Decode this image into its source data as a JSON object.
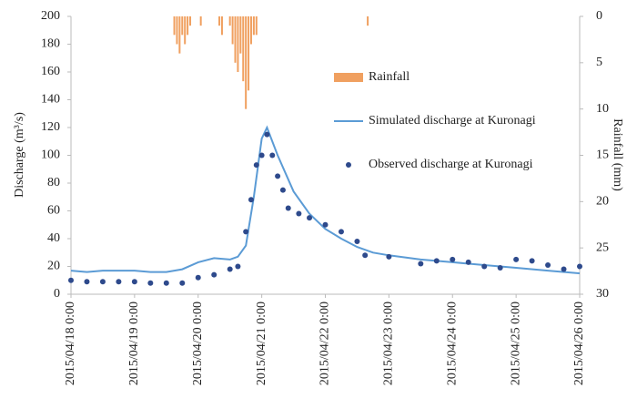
{
  "chart_data": {
    "type": "line",
    "ylabel": "Discharge (m³/s)",
    "y2label": "Rainfall (mm)",
    "xlim": [
      "2015/04/18 0:00",
      "2015/04/26 0:00"
    ],
    "xticks": [
      "2015/04/18 0:00",
      "2015/04/19 0:00",
      "2015/04/20 0:00",
      "2015/04/21 0:00",
      "2015/04/22 0:00",
      "2015/04/23 0:00",
      "2015/04/24 0:00",
      "2015/04/25 0:00",
      "2015/04/26 0:00"
    ],
    "ylim": [
      0,
      200
    ],
    "yticks": [
      0,
      20,
      40,
      60,
      80,
      100,
      120,
      140,
      160,
      180,
      200
    ],
    "y2lim": [
      30,
      0
    ],
    "y2ticks": [
      0,
      5,
      10,
      15,
      20,
      25,
      30
    ],
    "series": [
      {
        "name": "Rainfall",
        "type": "bar",
        "axis": "y2",
        "color": "#f0a060",
        "x": [
          "2015/04/19 15:00",
          "2015/04/19 16:00",
          "2015/04/19 17:00",
          "2015/04/19 18:00",
          "2015/04/19 19:00",
          "2015/04/19 20:00",
          "2015/04/19 21:00",
          "2015/04/20 1:00",
          "2015/04/20 8:00",
          "2015/04/20 9:00",
          "2015/04/20 12:00",
          "2015/04/20 13:00",
          "2015/04/20 14:00",
          "2015/04/20 15:00",
          "2015/04/20 16:00",
          "2015/04/20 17:00",
          "2015/04/20 18:00",
          "2015/04/20 19:00",
          "2015/04/20 20:00",
          "2015/04/20 21:00",
          "2015/04/20 22:00",
          "2015/04/22 16:00"
        ],
        "values": [
          2,
          3,
          4,
          2,
          3,
          2,
          1,
          1,
          1,
          2,
          1,
          3,
          5,
          6,
          4,
          7,
          10,
          8,
          3,
          2,
          2,
          1
        ]
      },
      {
        "name": "Simulated discharge at Kuronagi",
        "type": "line",
        "color": "#5b9bd5",
        "x": [
          "2015/04/18 0:00",
          "2015/04/18 6:00",
          "2015/04/18 12:00",
          "2015/04/18 18:00",
          "2015/04/19 0:00",
          "2015/04/19 6:00",
          "2015/04/19 12:00",
          "2015/04/19 18:00",
          "2015/04/20 0:00",
          "2015/04/20 6:00",
          "2015/04/20 12:00",
          "2015/04/20 15:00",
          "2015/04/20 18:00",
          "2015/04/20 21:00",
          "2015/04/21 0:00",
          "2015/04/21 2:00",
          "2015/04/21 6:00",
          "2015/04/21 12:00",
          "2015/04/21 18:00",
          "2015/04/22 0:00",
          "2015/04/22 6:00",
          "2015/04/22 12:00",
          "2015/04/22 18:00",
          "2015/04/23 0:00",
          "2015/04/23 12:00",
          "2015/04/24 0:00",
          "2015/04/24 12:00",
          "2015/04/25 0:00",
          "2015/04/25 12:00",
          "2015/04/26 0:00"
        ],
        "values": [
          17,
          16,
          17,
          17,
          17,
          16,
          16,
          18,
          23,
          26,
          25,
          27,
          35,
          70,
          112,
          120,
          100,
          74,
          58,
          47,
          40,
          34,
          30,
          28,
          25,
          23,
          21,
          19,
          17,
          15
        ]
      },
      {
        "name": "Observed discharge at Kuronagi",
        "type": "scatter",
        "color": "#2e4a8c",
        "x": [
          "2015/04/18 0:00",
          "2015/04/18 6:00",
          "2015/04/18 12:00",
          "2015/04/18 18:00",
          "2015/04/19 0:00",
          "2015/04/19 6:00",
          "2015/04/19 12:00",
          "2015/04/19 18:00",
          "2015/04/20 0:00",
          "2015/04/20 6:00",
          "2015/04/20 12:00",
          "2015/04/20 15:00",
          "2015/04/20 18:00",
          "2015/04/20 20:00",
          "2015/04/20 22:00",
          "2015/04/21 0:00",
          "2015/04/21 2:00",
          "2015/04/21 4:00",
          "2015/04/21 6:00",
          "2015/04/21 8:00",
          "2015/04/21 10:00",
          "2015/04/21 14:00",
          "2015/04/21 18:00",
          "2015/04/22 0:00",
          "2015/04/22 6:00",
          "2015/04/22 12:00",
          "2015/04/22 15:00",
          "2015/04/23 0:00",
          "2015/04/23 12:00",
          "2015/04/23 18:00",
          "2015/04/24 0:00",
          "2015/04/24 6:00",
          "2015/04/24 12:00",
          "2015/04/24 18:00",
          "2015/04/25 0:00",
          "2015/04/25 6:00",
          "2015/04/25 12:00",
          "2015/04/25 18:00",
          "2015/04/26 0:00"
        ],
        "values": [
          10,
          9,
          9,
          9,
          9,
          8,
          8,
          8,
          12,
          14,
          18,
          20,
          45,
          68,
          93,
          100,
          115,
          100,
          85,
          75,
          62,
          58,
          55,
          50,
          45,
          38,
          28,
          27,
          22,
          24,
          25,
          23,
          20,
          19,
          25,
          24,
          21,
          18,
          20
        ]
      }
    ]
  }
}
